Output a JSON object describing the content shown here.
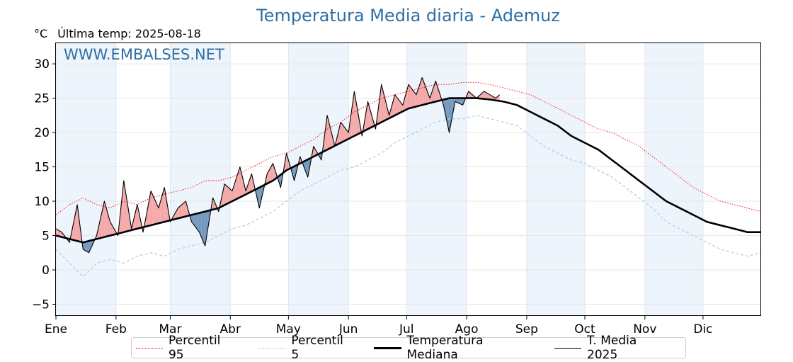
{
  "header": {
    "title": "Temperatura Media diaria - Ademuz",
    "unit": "°C",
    "last_update": "Última temp: 2025-08-18"
  },
  "watermark": "WWW.EMBALSES.NET",
  "legend": {
    "p95": "Percentil 95",
    "p5": "Percentil 5",
    "median": "Temperatura Mediana",
    "current": "T. Media 2025"
  },
  "colors": {
    "title": "#2f6fa3",
    "p95": "#ff0000",
    "p5": "#a8d6e6",
    "median": "#000000",
    "current": "#000000",
    "above_fill": "#f4a6a6",
    "below_fill": "#6f96bd",
    "month_band": "#eef4fb"
  },
  "chart_data": {
    "type": "line",
    "title": "Temperatura Media diaria - Ademuz",
    "ylabel": "°C",
    "ylim": [
      -6.7,
      33
    ],
    "xlim": [
      1,
      365
    ],
    "yticks": [
      -5,
      0,
      5,
      10,
      15,
      20,
      25,
      30
    ],
    "grid": true,
    "legend_position": "bottom",
    "months": [
      {
        "label": "Ene",
        "start_day": 1
      },
      {
        "label": "Feb",
        "start_day": 32
      },
      {
        "label": "Mar",
        "start_day": 60
      },
      {
        "label": "Abr",
        "start_day": 91
      },
      {
        "label": "May",
        "start_day": 121
      },
      {
        "label": "Jun",
        "start_day": 152
      },
      {
        "label": "Jul",
        "start_day": 182
      },
      {
        "label": "Ago",
        "start_day": 213
      },
      {
        "label": "Sep",
        "start_day": 244
      },
      {
        "label": "Oct",
        "start_day": 274
      },
      {
        "label": "Nov",
        "start_day": 305
      },
      {
        "label": "Dic",
        "start_day": 335
      }
    ],
    "series": [
      {
        "name": "Percentil 95",
        "style": "dotted",
        "day": [
          1,
          8,
          15,
          22,
          29,
          36,
          43,
          50,
          57,
          64,
          71,
          78,
          85,
          92,
          99,
          106,
          113,
          120,
          127,
          134,
          141,
          148,
          155,
          162,
          169,
          176,
          183,
          190,
          197,
          204,
          211,
          218,
          225,
          232,
          239,
          246,
          253,
          260,
          267,
          274,
          281,
          288,
          295,
          302,
          309,
          316,
          323,
          330,
          337,
          344,
          351,
          358,
          365
        ],
        "values": [
          8.0,
          9.5,
          10.5,
          9.5,
          9.0,
          10.0,
          9.5,
          10.5,
          11.0,
          11.5,
          12.0,
          13.0,
          13.0,
          13.5,
          14.5,
          15.5,
          16.5,
          17.0,
          18.0,
          19.0,
          20.5,
          21.5,
          23.0,
          24.0,
          25.0,
          25.5,
          26.0,
          26.5,
          27.0,
          27.0,
          27.3,
          27.3,
          27.0,
          26.5,
          26.0,
          25.5,
          24.5,
          23.5,
          22.5,
          21.5,
          20.5,
          20.0,
          19.0,
          18.0,
          16.5,
          15.0,
          13.5,
          12.0,
          11.0,
          10.0,
          9.5,
          9.0,
          8.5
        ]
      },
      {
        "name": "Percentil 5",
        "style": "dashed",
        "day": [
          1,
          8,
          15,
          22,
          29,
          36,
          43,
          50,
          57,
          64,
          71,
          78,
          85,
          92,
          99,
          106,
          113,
          120,
          127,
          134,
          141,
          148,
          155,
          162,
          169,
          176,
          183,
          190,
          197,
          204,
          211,
          218,
          225,
          232,
          239,
          246,
          253,
          260,
          267,
          274,
          281,
          288,
          295,
          302,
          309,
          316,
          323,
          330,
          337,
          344,
          351,
          358,
          365
        ],
        "values": [
          3.0,
          1.0,
          -1.0,
          1.0,
          1.5,
          1.0,
          2.0,
          2.5,
          2.0,
          3.0,
          3.5,
          4.0,
          5.0,
          6.0,
          6.5,
          7.5,
          8.5,
          10.0,
          11.5,
          12.5,
          13.5,
          14.5,
          15.0,
          16.0,
          17.0,
          18.5,
          19.5,
          20.5,
          21.5,
          22.0,
          22.0,
          22.5,
          22.0,
          21.5,
          21.0,
          19.5,
          18.0,
          17.0,
          16.0,
          15.5,
          14.5,
          13.5,
          12.0,
          10.5,
          9.0,
          7.0,
          6.0,
          5.0,
          4.0,
          3.0,
          2.5,
          2.0,
          2.5
        ]
      },
      {
        "name": "Temperatura Mediana",
        "style": "solid-thick",
        "day": [
          1,
          8,
          15,
          22,
          29,
          36,
          43,
          50,
          57,
          64,
          71,
          78,
          85,
          92,
          99,
          106,
          113,
          120,
          127,
          134,
          141,
          148,
          155,
          162,
          169,
          176,
          183,
          190,
          197,
          204,
          211,
          218,
          225,
          232,
          239,
          246,
          253,
          260,
          267,
          274,
          281,
          288,
          295,
          302,
          309,
          316,
          323,
          330,
          337,
          344,
          351,
          358,
          365
        ],
        "values": [
          5.0,
          4.5,
          4.0,
          4.5,
          5.0,
          5.5,
          6.0,
          6.5,
          7.0,
          7.5,
          8.0,
          8.5,
          9.0,
          10.0,
          11.0,
          12.0,
          13.0,
          14.5,
          15.5,
          16.5,
          17.5,
          18.5,
          19.5,
          20.5,
          21.5,
          22.5,
          23.5,
          24.0,
          24.5,
          25.0,
          25.0,
          25.0,
          24.8,
          24.5,
          24.0,
          23.0,
          22.0,
          21.0,
          19.5,
          18.5,
          17.5,
          16.0,
          14.5,
          13.0,
          11.5,
          10.0,
          9.0,
          8.0,
          7.0,
          6.5,
          6.0,
          5.5,
          5.5
        ]
      },
      {
        "name": "T. Media 2025",
        "style": "solid-thin",
        "day": [
          1,
          4,
          8,
          12,
          15,
          18,
          22,
          26,
          29,
          33,
          36,
          40,
          43,
          46,
          50,
          54,
          57,
          60,
          64,
          68,
          71,
          75,
          78,
          82,
          85,
          88,
          92,
          96,
          99,
          102,
          106,
          110,
          113,
          117,
          120,
          124,
          127,
          131,
          134,
          138,
          141,
          145,
          148,
          152,
          155,
          159,
          162,
          166,
          169,
          173,
          176,
          180,
          183,
          187,
          190,
          194,
          197,
          201,
          204,
          207,
          211,
          214,
          218,
          222,
          225,
          228,
          230
        ],
        "values": [
          6.0,
          5.5,
          4.0,
          9.5,
          3.0,
          2.5,
          5.0,
          10.0,
          7.0,
          5.0,
          13.0,
          6.0,
          9.5,
          5.5,
          11.5,
          9.0,
          12.0,
          7.0,
          9.0,
          10.0,
          7.0,
          5.5,
          3.5,
          10.5,
          8.5,
          12.5,
          11.5,
          15.0,
          11.5,
          14.0,
          9.0,
          14.0,
          15.5,
          12.0,
          17.0,
          13.0,
          16.5,
          13.5,
          18.0,
          16.0,
          22.5,
          18.0,
          21.5,
          20.0,
          26.0,
          19.5,
          24.5,
          20.5,
          27.0,
          22.5,
          25.5,
          24.0,
          27.0,
          25.5,
          28.0,
          25.0,
          27.5,
          24.0,
          20.0,
          24.5,
          24.0,
          26.0,
          25.0,
          26.0,
          25.5,
          25.0,
          25.5
        ]
      }
    ]
  }
}
